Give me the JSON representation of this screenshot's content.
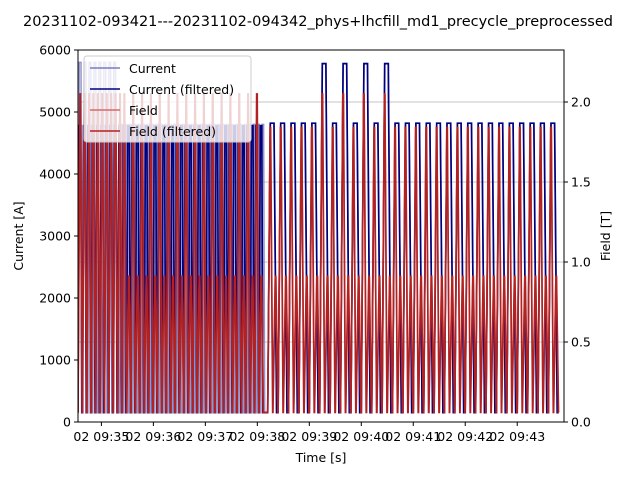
{
  "chart_data": {
    "type": "line",
    "title": "20231102-093421---20231102-094342_phys+lhcfill_md1_precycle_preprocessed",
    "xlabel": "Time [s]",
    "ylabel_left": "Current [A]",
    "ylabel_right": "Field [T]",
    "x_ticks": [
      "02 09:35",
      "02 09:36",
      "02 09:37",
      "02 09:38",
      "02 09:39",
      "02 09:40",
      "02 09:41",
      "02 09:42",
      "02 09:43"
    ],
    "y_left_ticks": [
      "0",
      "1000",
      "2000",
      "3000",
      "4000",
      "5000",
      "6000"
    ],
    "y_right_ticks": [
      "0.0",
      "0.5",
      "1.0",
      "1.5",
      "2.0"
    ],
    "ylim_left": [
      0,
      6000
    ],
    "ylim_right": [
      0,
      2.325
    ],
    "xlim_minutes": [
      34.55,
      43.9
    ],
    "grid": "right-axis horizontal",
    "legend": {
      "location": "upper left",
      "entries": [
        "Current",
        "Current (filtered)",
        "Field",
        "Field (filtered)"
      ]
    },
    "colors": {
      "current": "#7b7bbd",
      "current_filtered": "#00007f",
      "field": "#d46b6b",
      "field_filtered": "#b22222"
    },
    "series": [
      {
        "name": "Current",
        "note_values": "pulse train; baseline ~150 A",
        "segments": [
          {
            "start": 34.55,
            "end": 35.35,
            "period": 0.095,
            "peak": 5800
          },
          {
            "start": 35.35,
            "end": 38.2,
            "period": 0.085,
            "peak": 4800
          },
          {
            "start": 38.2,
            "end": 43.9,
            "period": 0.2,
            "peak": 4820,
            "tall_peak": 5780
          }
        ]
      },
      {
        "name": "Current (filtered)",
        "segments": [
          {
            "start": 34.55,
            "end": 38.2,
            "period": 0.085,
            "peak": 4780
          },
          {
            "start": 38.2,
            "end": 43.9,
            "period": 0.2,
            "peak": 4820,
            "tall_peak": 5780
          }
        ]
      },
      {
        "name": "Field",
        "baseline": 0.06,
        "peaks": [
          2.05,
          0.91
        ]
      },
      {
        "name": "Field (filtered)",
        "baseline": 0.06,
        "peaks": [
          2.05,
          0.91
        ]
      }
    ]
  }
}
